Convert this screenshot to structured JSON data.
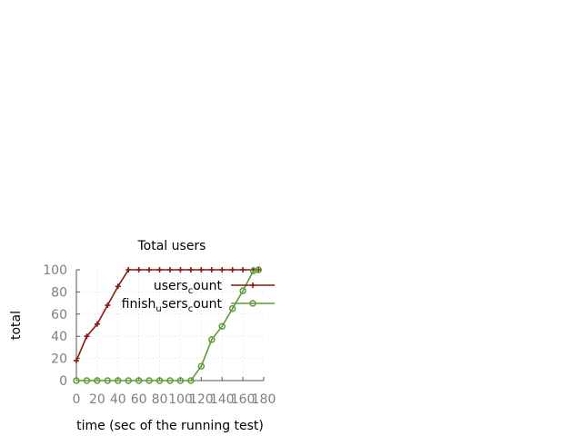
{
  "chart_data": {
    "type": "line",
    "title": "Total users",
    "xlabel": "time (sec of the running test)",
    "ylabel": "total",
    "xlim": [
      0,
      180
    ],
    "ylim": [
      0,
      100
    ],
    "xticks": [
      "0",
      "20",
      "40",
      "60",
      "80",
      "100",
      "120",
      "140",
      "160",
      "180"
    ],
    "yticks": [
      "0",
      "20",
      "40",
      "60",
      "80",
      "100"
    ],
    "grid": true,
    "legend_position": "top-right",
    "series": [
      {
        "name_parts": [
          "users",
          "c",
          "ount"
        ],
        "color": "#8b1a0e",
        "marker": "plus",
        "x": [
          0,
          10,
          20,
          30,
          40,
          50,
          60,
          70,
          80,
          90,
          100,
          110,
          120,
          130,
          140,
          150,
          160,
          170,
          175
        ],
        "y": [
          18,
          40,
          51,
          68,
          85,
          100,
          100,
          100,
          100,
          100,
          100,
          100,
          100,
          100,
          100,
          100,
          100,
          100,
          100
        ]
      },
      {
        "name_parts": [
          "finish",
          "u",
          "sers",
          "c",
          "ount"
        ],
        "color": "#5e9c36",
        "marker": "circle",
        "x": [
          0,
          10,
          20,
          30,
          40,
          50,
          60,
          70,
          80,
          90,
          100,
          110,
          120,
          130,
          140,
          150,
          160,
          170,
          175
        ],
        "y": [
          0,
          0,
          0,
          0,
          0,
          0,
          0,
          0,
          0,
          0,
          0,
          0,
          13,
          37,
          49,
          65,
          81,
          99,
          100
        ]
      }
    ]
  }
}
